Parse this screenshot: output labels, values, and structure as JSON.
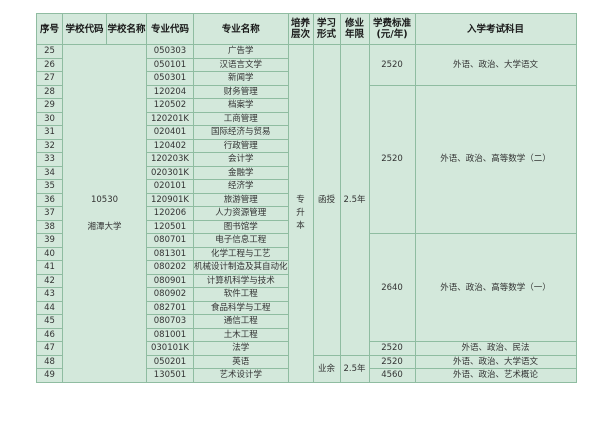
{
  "colors": {
    "page_bg": "#ffffff",
    "cell_bg": "#d3e8db",
    "border": "#8fbca1",
    "text": "#333333",
    "header_text": "#1a1a1a"
  },
  "table": {
    "headers": [
      {
        "id": "index",
        "label": "序号"
      },
      {
        "id": "school-code",
        "label": "学校代码"
      },
      {
        "id": "school-name",
        "label": "学校名称"
      },
      {
        "id": "major-code",
        "label": "专业代码"
      },
      {
        "id": "major-name",
        "label": "专业名称"
      },
      {
        "id": "level",
        "label": "培养\n层次"
      },
      {
        "id": "study-form",
        "label": "学习\n形式"
      },
      {
        "id": "duration",
        "label": "修业\n年限"
      },
      {
        "id": "tuition",
        "label": "学费标准\n(元/年)"
      },
      {
        "id": "exam-subjects",
        "label": "入学考试科目"
      }
    ],
    "school": {
      "code": "10530",
      "name": "湘潭大学",
      "row_span": 25
    },
    "level": {
      "label": "专升本",
      "vertical": true,
      "row_span": 25
    },
    "study_form_groups": [
      {
        "label": "函授",
        "row_span": 23
      },
      {
        "label": "业余",
        "row_span": 2
      }
    ],
    "duration_groups": [
      {
        "label": "2.5年",
        "row_span": 23
      },
      {
        "label": "2.5年",
        "row_span": 2
      }
    ],
    "fee_groups": [
      {
        "row_span": 3,
        "tuition": "2520",
        "subjects": "外语、政治、大学语文"
      },
      {
        "row_span": 11,
        "tuition": "2520",
        "subjects": "外语、政治、高等数学（二）"
      },
      {
        "row_span": 8,
        "tuition": "2640",
        "subjects": "外语、政治、高等数学（一）"
      },
      {
        "row_span": 1,
        "tuition": "2520",
        "subjects": "外语、政治、民法"
      },
      {
        "row_span": 1,
        "tuition": "2520",
        "subjects": "外语、政治、大学语文"
      },
      {
        "row_span": 1,
        "tuition": "4560",
        "subjects": "外语、政治、艺术概论"
      }
    ],
    "rows": [
      {
        "no": "25",
        "major_code": "050303",
        "major_name": "广告学"
      },
      {
        "no": "26",
        "major_code": "050101",
        "major_name": "汉语言文学"
      },
      {
        "no": "27",
        "major_code": "050301",
        "major_name": "新闻学"
      },
      {
        "no": "28",
        "major_code": "120204",
        "major_name": "财务管理"
      },
      {
        "no": "29",
        "major_code": "120502",
        "major_name": "档案学"
      },
      {
        "no": "30",
        "major_code": "120201K",
        "major_name": "工商管理"
      },
      {
        "no": "31",
        "major_code": "020401",
        "major_name": "国际经济与贸易"
      },
      {
        "no": "32",
        "major_code": "120402",
        "major_name": "行政管理"
      },
      {
        "no": "33",
        "major_code": "120203K",
        "major_name": "会计学"
      },
      {
        "no": "34",
        "major_code": "020301K",
        "major_name": "金融学"
      },
      {
        "no": "35",
        "major_code": "020101",
        "major_name": "经济学"
      },
      {
        "no": "36",
        "major_code": "120901K",
        "major_name": "旅游管理"
      },
      {
        "no": "37",
        "major_code": "120206",
        "major_name": "人力资源管理"
      },
      {
        "no": "38",
        "major_code": "120501",
        "major_name": "图书馆学"
      },
      {
        "no": "39",
        "major_code": "080701",
        "major_name": "电子信息工程"
      },
      {
        "no": "40",
        "major_code": "081301",
        "major_name": "化学工程与工艺"
      },
      {
        "no": "41",
        "major_code": "080202",
        "major_name": "机械设计制造及其自动化"
      },
      {
        "no": "42",
        "major_code": "080901",
        "major_name": "计算机科学与技术"
      },
      {
        "no": "43",
        "major_code": "080902",
        "major_name": "软件工程"
      },
      {
        "no": "44",
        "major_code": "082701",
        "major_name": "食品科学与工程"
      },
      {
        "no": "45",
        "major_code": "080703",
        "major_name": "通信工程"
      },
      {
        "no": "46",
        "major_code": "081001",
        "major_name": "土木工程"
      },
      {
        "no": "47",
        "major_code": "030101K",
        "major_name": "法学"
      },
      {
        "no": "48",
        "major_code": "050201",
        "major_name": "英语"
      },
      {
        "no": "49",
        "major_code": "130501",
        "major_name": "艺术设计学"
      }
    ]
  }
}
